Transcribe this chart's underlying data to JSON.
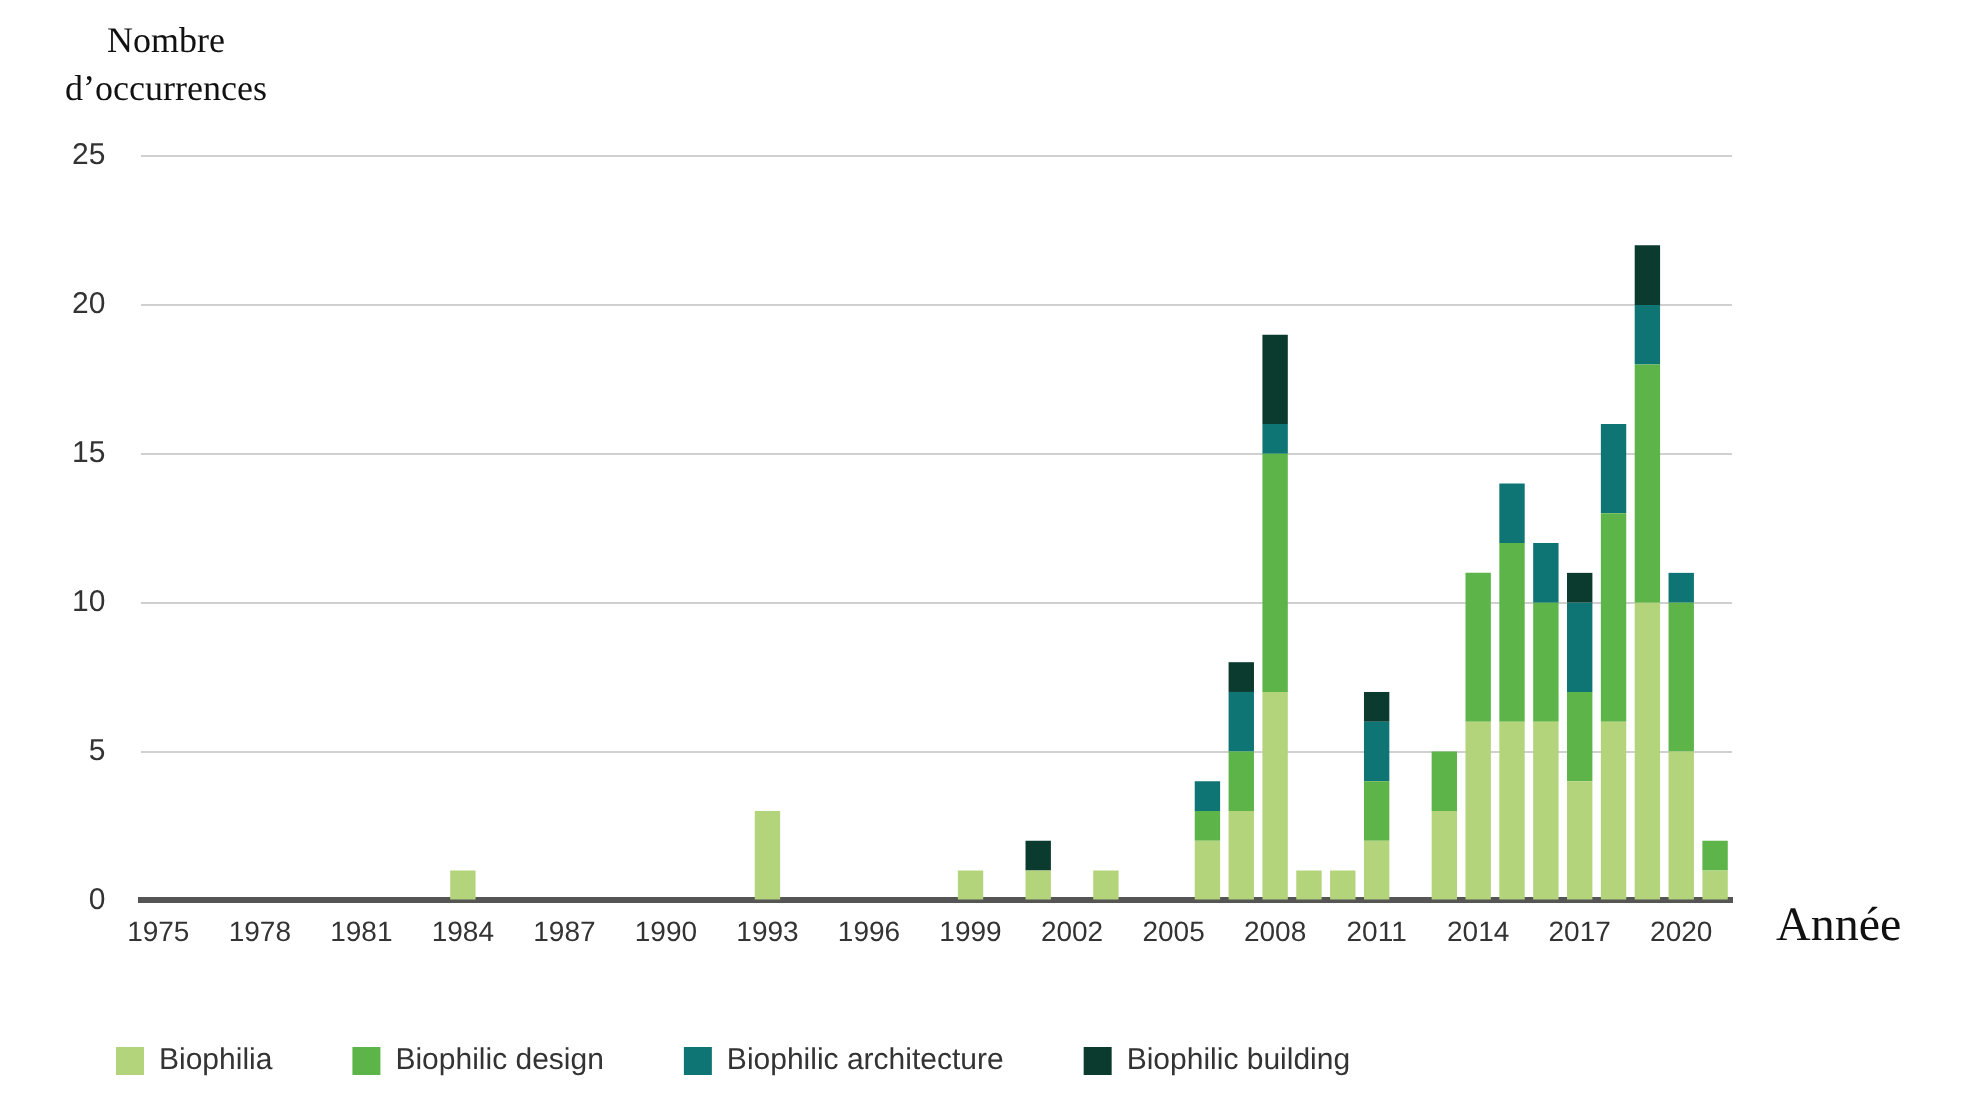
{
  "chart_data": {
    "type": "bar",
    "stacked": true,
    "xlabel": "Année",
    "ylabel": "Nombre d’occurrences",
    "categories": [
      "1975",
      null,
      null,
      "1978",
      null,
      null,
      "1981",
      null,
      null,
      "1984",
      null,
      null,
      "1987",
      null,
      null,
      "1990",
      null,
      null,
      "1993",
      null,
      null,
      "1996",
      null,
      null,
      "1999",
      null,
      null,
      "2002",
      null,
      null,
      "2005",
      null,
      null,
      "2008",
      null,
      null,
      "2011",
      null,
      null,
      "2014",
      null,
      null,
      "2017",
      null,
      null,
      "2020",
      null
    ],
    "series": [
      {
        "name": "Biophilia",
        "color": "#b3d47a",
        "values": [
          0,
          0,
          0,
          0,
          0,
          0,
          0,
          0,
          0,
          1,
          0,
          0,
          0,
          0,
          0,
          0,
          0,
          0,
          3,
          0,
          0,
          0,
          0,
          0,
          1,
          0,
          1,
          0,
          1,
          0,
          0,
          2,
          3,
          7,
          1,
          1,
          2,
          0,
          3,
          6,
          6,
          6,
          4,
          6,
          10,
          5,
          1
        ]
      },
      {
        "name": "Biophilic design",
        "color": "#5db54a",
        "values": [
          0,
          0,
          0,
          0,
          0,
          0,
          0,
          0,
          0,
          0,
          0,
          0,
          0,
          0,
          0,
          0,
          0,
          0,
          0,
          0,
          0,
          0,
          0,
          0,
          0,
          0,
          0,
          0,
          0,
          0,
          0,
          1,
          2,
          8,
          0,
          0,
          2,
          0,
          2,
          5,
          6,
          4,
          3,
          7,
          8,
          5,
          1
        ]
      },
      {
        "name": "Biophilic architecture",
        "color": "#0e7474",
        "values": [
          0,
          0,
          0,
          0,
          0,
          0,
          0,
          0,
          0,
          0,
          0,
          0,
          0,
          0,
          0,
          0,
          0,
          0,
          0,
          0,
          0,
          0,
          0,
          0,
          0,
          0,
          0,
          0,
          0,
          0,
          0,
          1,
          2,
          1,
          0,
          0,
          2,
          0,
          0,
          0,
          2,
          2,
          3,
          3,
          2,
          1,
          0
        ]
      },
      {
        "name": "Biophilic building",
        "color": "#0b3a2e",
        "values": [
          0,
          0,
          0,
          0,
          0,
          0,
          0,
          0,
          0,
          0,
          0,
          0,
          0,
          0,
          0,
          0,
          0,
          0,
          0,
          0,
          0,
          0,
          0,
          0,
          0,
          0,
          1,
          0,
          0,
          0,
          0,
          0,
          1,
          3,
          0,
          0,
          1,
          0,
          0,
          0,
          0,
          0,
          1,
          0,
          2,
          0,
          0
        ]
      }
    ],
    "ylim": [
      0,
      25
    ],
    "yticks": [
      0,
      5,
      10,
      15,
      20,
      25
    ],
    "grid": "y",
    "legend": "bottom"
  }
}
